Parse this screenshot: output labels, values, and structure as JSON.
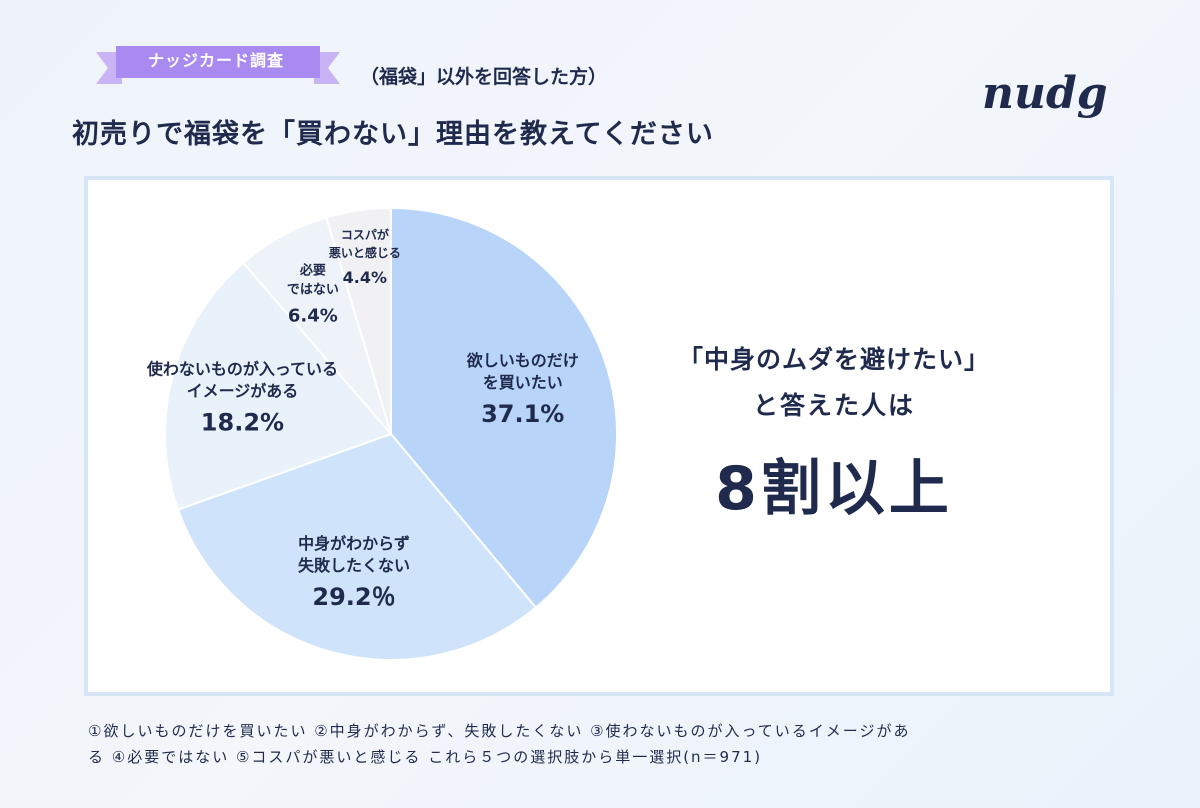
{
  "badge": {
    "label": "ナッジカード調査"
  },
  "header": {
    "subtitle": "（福袋」以外を回答した方）",
    "title": "初売りで福袋を「買わない」理由を教えてください"
  },
  "logo": {
    "text": "nudge"
  },
  "callout": {
    "line1": "「中身のムダを避けたい」",
    "line2": "と答えた人は",
    "line3": "8割以上"
  },
  "footnote": {
    "line1": "①欲しいものだけを買いたい ②中身がわからず、失敗したくない ③使わないものが入っているイメージがあ",
    "line2": "る ④必要ではない ⑤コスパが悪いと感じる これら５つの選択肢から単一選択(n＝971)"
  },
  "colors": {
    "navy": "#1f2a4d",
    "slice1": "#b8d4f8",
    "slice2": "#cfe3fb",
    "slice3": "#e9f1fb",
    "slice4": "#eef3f9",
    "slice5": "#f1f1f4",
    "ribbon": "#a98af0"
  },
  "chart_data": {
    "type": "pie",
    "unit": "%",
    "slices": [
      {
        "label_lines": [
          "欲しいものだけ",
          "を買いたい"
        ],
        "value": 37.1,
        "value_label": "37.1%"
      },
      {
        "label_lines": [
          "中身がわからず",
          "失敗したくない"
        ],
        "value": 29.2,
        "value_label": "29.2％"
      },
      {
        "label_lines": [
          "使わないものが入っている",
          "イメージがある"
        ],
        "value": 18.2,
        "value_label": "18.2%"
      },
      {
        "label_lines": [
          "必要",
          "ではない"
        ],
        "value": 6.4,
        "value_label": "6.4%"
      },
      {
        "label_lines": [
          "コスパが",
          "悪いと感じる"
        ],
        "value": 4.4,
        "value_label": "4.4%"
      }
    ]
  }
}
